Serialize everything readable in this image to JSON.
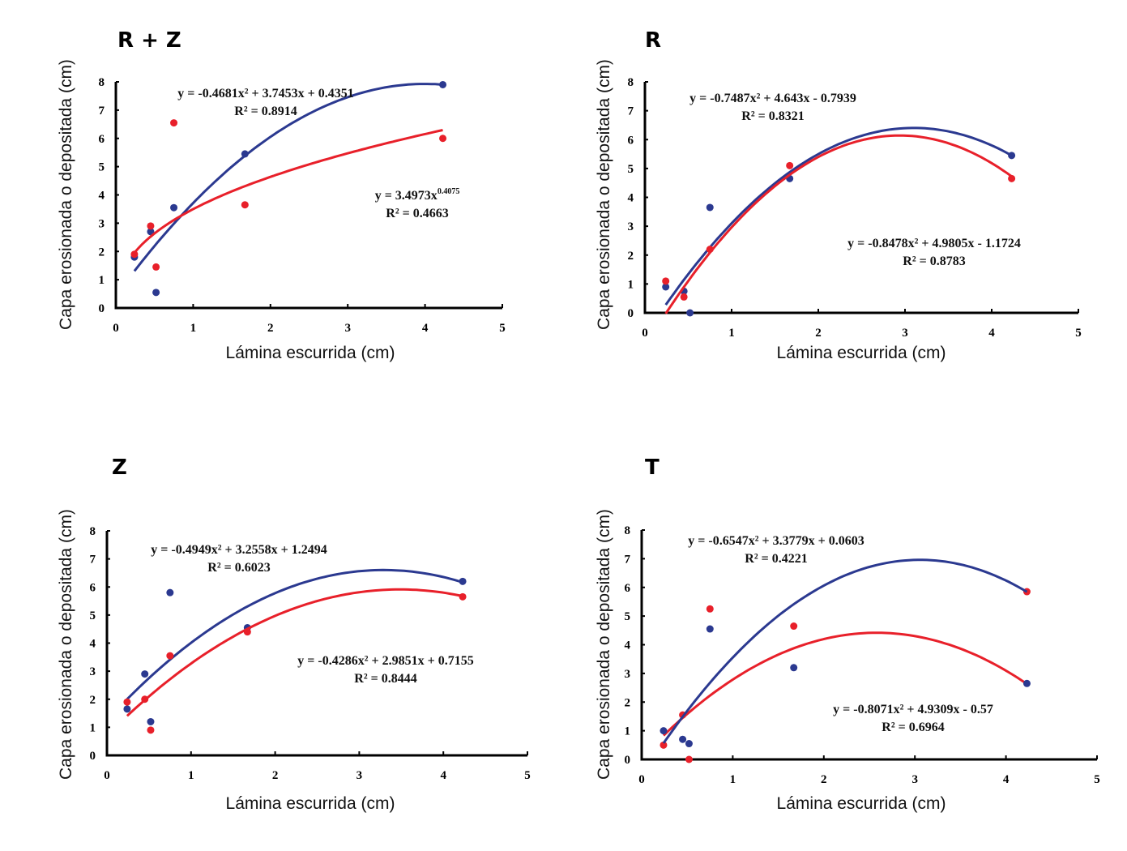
{
  "colors": {
    "blue": "#2b3990",
    "red": "#e8202a",
    "axis": "#000000"
  },
  "chart_data": [
    {
      "type": "scatter",
      "title": "R + Z",
      "xlabel": "Lámina escurrida (cm)",
      "ylabel": "Capa erosionada o depositada (cm)",
      "xlim": [
        0,
        5
      ],
      "ylim": [
        0,
        8
      ],
      "xticks": [
        "0",
        "1",
        "2",
        "3",
        "4",
        "5"
      ],
      "yticks": [
        "0",
        "1",
        "2",
        "3",
        "4",
        "5",
        "6",
        "7",
        "8"
      ],
      "grid": false,
      "series": [
        {
          "name": "blue",
          "color": "blue",
          "x": [
            0.24,
            0.45,
            0.52,
            0.75,
            1.67,
            4.23
          ],
          "y": [
            1.8,
            2.7,
            0.55,
            3.55,
            5.45,
            7.9
          ],
          "fit": {
            "kind": "poly2",
            "a": -0.4681,
            "b": 3.7453,
            "c": 0.4351,
            "x0": 0.24,
            "x1": 4.23
          },
          "equation": "y = -0.4681x² + 3.7453x + 0.4351",
          "r2": "R² = 0.8914",
          "label_pos": "top"
        },
        {
          "name": "red",
          "color": "red",
          "x": [
            0.24,
            0.45,
            0.52,
            0.75,
            1.67,
            4.23
          ],
          "y": [
            1.9,
            2.9,
            1.45,
            6.55,
            3.65,
            6.0
          ],
          "fit": {
            "kind": "power",
            "a": 3.4973,
            "b": 0.4075,
            "x0": 0.24,
            "x1": 4.23
          },
          "equation_base": "y = 3.4973x",
          "equation_exp": "0.4075",
          "r2": "R² = 0.4663",
          "label_pos": "right"
        }
      ]
    },
    {
      "type": "scatter",
      "title": "R",
      "xlabel": "Lámina escurrida (cm)",
      "ylabel": "Capa erosionada o depositada (cm)",
      "xlim": [
        0,
        5
      ],
      "ylim": [
        0,
        8
      ],
      "xticks": [
        "0",
        "1",
        "2",
        "3",
        "4",
        "5"
      ],
      "yticks": [
        "0",
        "1",
        "2",
        "3",
        "4",
        "5",
        "6",
        "7",
        "8"
      ],
      "grid": false,
      "series": [
        {
          "name": "blue",
          "color": "blue",
          "x": [
            0.24,
            0.45,
            0.52,
            0.75,
            1.67,
            4.23
          ],
          "y": [
            0.9,
            0.75,
            0.0,
            3.65,
            4.65,
            5.45
          ],
          "fit": {
            "kind": "poly2",
            "a": -0.7487,
            "b": 4.643,
            "c": -0.7939,
            "x0": 0.24,
            "x1": 4.23
          },
          "equation": "y = -0.7487x² + 4.643x - 0.7939",
          "r2": "R² = 0.8321",
          "label_pos": "top"
        },
        {
          "name": "red",
          "color": "red",
          "x": [
            0.24,
            0.45,
            0.75,
            1.67,
            4.23
          ],
          "y": [
            1.1,
            0.55,
            2.2,
            5.1,
            4.65
          ],
          "fit": {
            "kind": "poly2",
            "a": -0.8478,
            "b": 4.9805,
            "c": -1.1724,
            "x0": 0.24,
            "x1": 4.23
          },
          "equation": "y = -0.8478x² + 4.9805x - 1.1724",
          "r2": "R² = 0.8783",
          "label_pos": "right"
        }
      ]
    },
    {
      "type": "scatter",
      "title": "Z",
      "xlabel": "Lámina escurrida (cm)",
      "ylabel": "Capa erosionada o depositada (cm)",
      "xlim": [
        0,
        5
      ],
      "ylim": [
        0,
        8
      ],
      "xticks": [
        "0",
        "1",
        "2",
        "3",
        "4",
        "5"
      ],
      "yticks": [
        "0",
        "1",
        "2",
        "3",
        "4",
        "5",
        "6",
        "7",
        "8"
      ],
      "grid": false,
      "series": [
        {
          "name": "blue",
          "color": "blue",
          "x": [
            0.24,
            0.45,
            0.52,
            0.75,
            1.67,
            4.23
          ],
          "y": [
            1.65,
            2.9,
            1.2,
            5.8,
            4.55,
            6.2
          ],
          "fit": {
            "kind": "poly2",
            "a": -0.4949,
            "b": 3.2558,
            "c": 1.2494,
            "x0": 0.24,
            "x1": 4.23
          },
          "equation": "y = -0.4949x² + 3.2558x + 1.2494",
          "r2": "R² = 0.6023",
          "label_pos": "top"
        },
        {
          "name": "red",
          "color": "red",
          "x": [
            0.24,
            0.45,
            0.52,
            0.75,
            1.67,
            4.23
          ],
          "y": [
            1.9,
            2.0,
            0.9,
            3.55,
            4.4,
            5.65
          ],
          "fit": {
            "kind": "poly2",
            "a": -0.4286,
            "b": 2.9851,
            "c": 0.7155,
            "x0": 0.24,
            "x1": 4.23
          },
          "equation": "y = -0.4286x² + 2.9851x + 0.7155",
          "r2": "R² = 0.8444",
          "label_pos": "right"
        }
      ]
    },
    {
      "type": "scatter",
      "title": "T",
      "xlabel": "Lámina escurrida (cm)",
      "ylabel": "Capa erosionada o depositada (cm)",
      "xlim": [
        0,
        5
      ],
      "ylim": [
        0,
        8
      ],
      "xticks": [
        "0",
        "1",
        "2",
        "3",
        "4",
        "5"
      ],
      "yticks": [
        "0",
        "1",
        "2",
        "3",
        "4",
        "5",
        "6",
        "7",
        "8"
      ],
      "grid": false,
      "series": [
        {
          "name": "red",
          "color": "red",
          "x": [
            0.24,
            0.45,
            0.52,
            0.75,
            1.67,
            4.23
          ],
          "y": [
            0.5,
            1.55,
            0.0,
            5.25,
            4.65,
            5.85
          ],
          "fit": {
            "kind": "poly2",
            "a": -0.6547,
            "b": 3.3779,
            "c": 0.0603,
            "x0": 0.24,
            "x1": 4.23
          },
          "equation": "y = -0.6547x² + 3.3779x + 0.0603",
          "r2": "R² = 0.4221",
          "label_pos": "top"
        },
        {
          "name": "blue",
          "color": "blue",
          "x": [
            0.24,
            0.45,
            0.52,
            0.75,
            1.67,
            4.23
          ],
          "y": [
            1.0,
            0.7,
            0.55,
            4.55,
            3.2,
            2.65
          ],
          "fit": {
            "kind": "poly2",
            "a": -0.8071,
            "b": 4.9309,
            "c": -0.57,
            "x0": 0.24,
            "x1": 4.23
          },
          "equation": "y = -0.8071x² + 4.9309x - 0.57",
          "r2": "R² = 0.6964",
          "label_pos": "right"
        }
      ]
    }
  ]
}
